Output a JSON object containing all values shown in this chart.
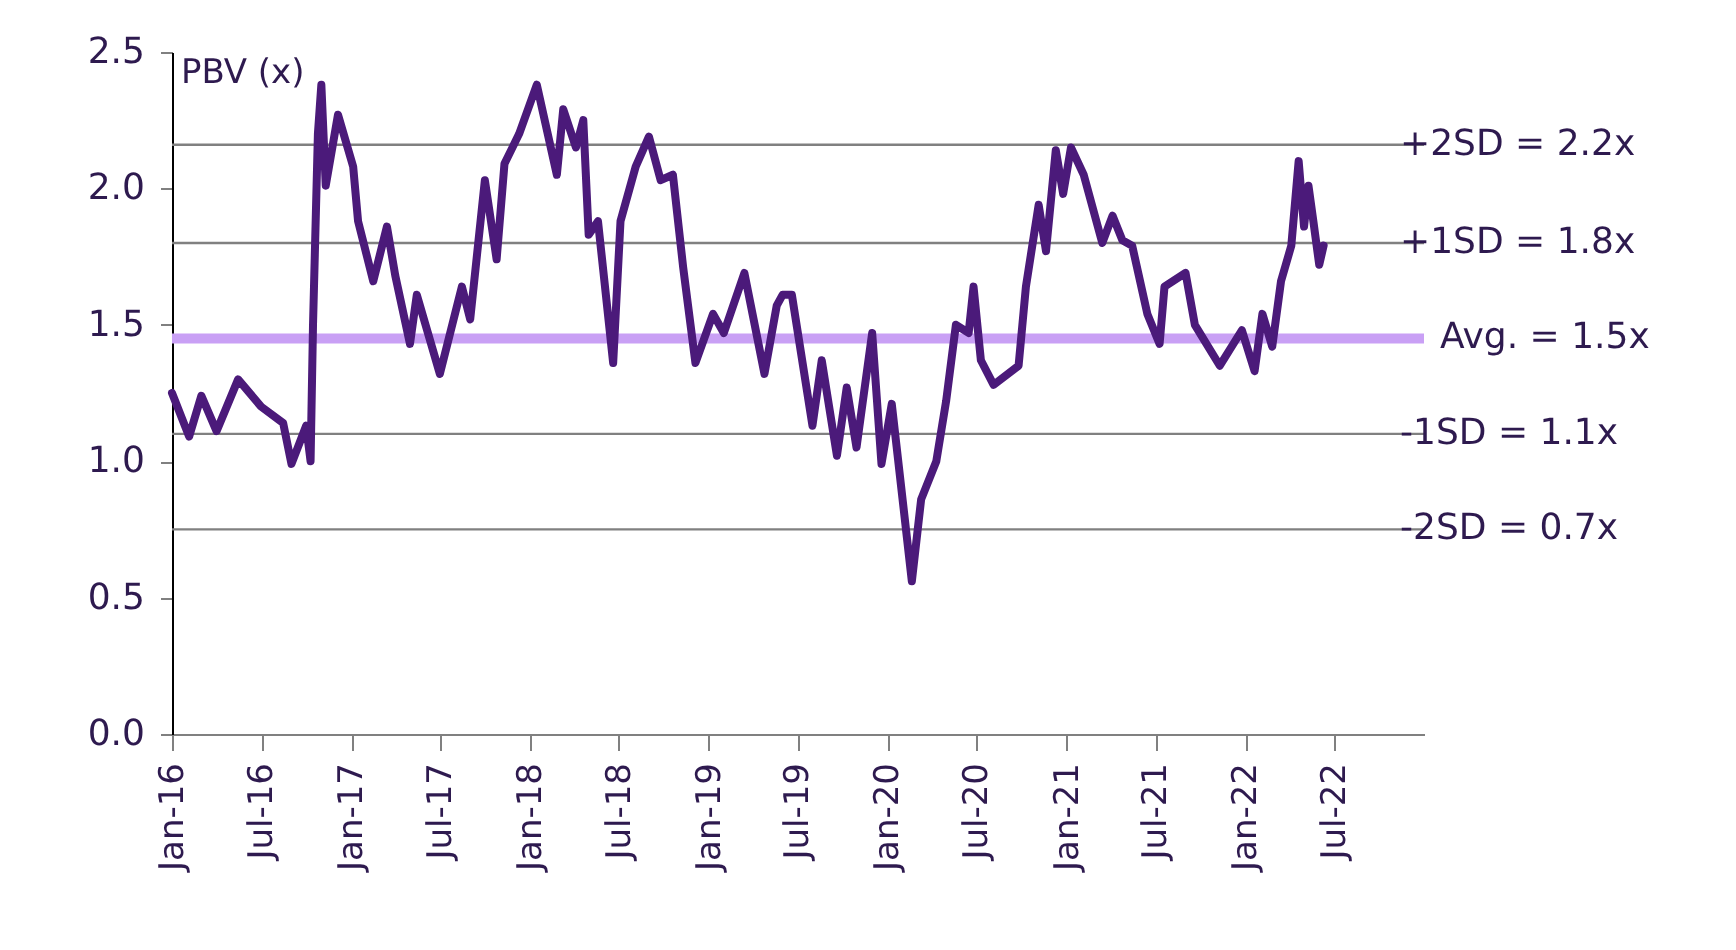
{
  "chart_data": {
    "type": "line",
    "ylabel": "PBV (x)",
    "x": [
      "2016-01-01",
      "2016-02-05",
      "2016-03-01",
      "2016-04-01",
      "2016-05-15",
      "2016-07-01",
      "2016-08-15",
      "2016-09-01",
      "2016-10-01",
      "2016-10-10",
      "2016-10-15",
      "2016-10-25",
      "2016-11-01",
      "2016-11-10",
      "2016-12-05",
      "2017-01-05",
      "2017-01-15",
      "2017-02-15",
      "2017-03-15",
      "2017-04-01",
      "2017-05-01",
      "2017-05-15",
      "2017-07-01",
      "2017-08-15",
      "2017-09-01",
      "2017-10-01",
      "2017-10-25",
      "2017-11-10",
      "2017-12-10",
      "2018-01-15",
      "2018-02-25",
      "2018-03-10",
      "2018-04-05",
      "2018-04-20",
      "2018-05-01",
      "2018-05-20",
      "2018-06-20",
      "2018-07-05",
      "2018-08-05",
      "2018-09-01",
      "2018-09-25",
      "2018-10-20",
      "2018-11-10",
      "2018-12-05",
      "2019-01-10",
      "2019-02-01",
      "2019-03-15",
      "2019-04-25",
      "2019-05-20",
      "2019-06-01",
      "2019-06-20",
      "2019-08-01",
      "2019-08-20",
      "2019-09-20",
      "2019-10-10",
      "2019-10-30",
      "2019-12-01",
      "2019-12-20",
      "2020-01-10",
      "2020-02-20",
      "2020-03-10",
      "2020-04-10",
      "2020-04-30",
      "2020-05-20",
      "2020-06-15",
      "2020-06-25",
      "2020-07-10",
      "2020-08-05",
      "2020-09-25",
      "2020-10-10",
      "2020-11-05",
      "2020-11-20",
      "2020-12-10",
      "2020-12-25",
      "2021-01-10",
      "2021-02-05",
      "2021-03-15",
      "2021-04-05",
      "2021-04-25",
      "2021-05-15",
      "2021-06-15",
      "2021-07-10",
      "2021-07-20",
      "2021-09-01",
      "2021-09-20",
      "2021-11-10",
      "2021-12-25",
      "2022-01-20",
      "2022-02-05",
      "2022-02-25",
      "2022-03-15",
      "2022-04-05",
      "2022-04-20",
      "2022-05-01",
      "2022-05-10",
      "2022-05-20",
      "2022-06-01",
      "2022-06-10"
    ],
    "series": [
      {
        "color": "#4b1a7a",
        "values": [
          1.25,
          1.09,
          1.24,
          1.11,
          1.3,
          1.2,
          1.14,
          0.99,
          1.13,
          1.0,
          1.5,
          2.2,
          2.38,
          2.01,
          2.27,
          2.08,
          1.88,
          1.66,
          1.86,
          1.68,
          1.43,
          1.61,
          1.32,
          1.64,
          1.52,
          2.03,
          1.74,
          2.09,
          2.2,
          2.38,
          2.05,
          2.29,
          2.15,
          2.25,
          1.83,
          1.88,
          1.36,
          1.88,
          2.08,
          2.19,
          2.03,
          2.05,
          1.71,
          1.36,
          1.54,
          1.47,
          1.69,
          1.32,
          1.57,
          1.61,
          1.61,
          1.13,
          1.37,
          1.02,
          1.27,
          1.05,
          1.47,
          0.99,
          1.21,
          0.56,
          0.86,
          1.0,
          1.22,
          1.5,
          1.47,
          1.64,
          1.37,
          1.28,
          1.35,
          1.64,
          1.94,
          1.77,
          2.14,
          1.98,
          2.15,
          2.05,
          1.8,
          1.9,
          1.81,
          1.79,
          1.54,
          1.43,
          1.64,
          1.69,
          1.5,
          1.35,
          1.48,
          1.33,
          1.54,
          1.42,
          1.66,
          1.79,
          2.1,
          1.86,
          2.01,
          1.88,
          1.72,
          1.79
        ]
      }
    ],
    "xlim": [
      "2016-01-01",
      "2023-01-01"
    ],
    "xticks": [
      {
        "value": "2016-01-01",
        "label": "Jan-16"
      },
      {
        "value": "2016-07-01",
        "label": "Jul-16"
      },
      {
        "value": "2017-01-01",
        "label": "Jan-17"
      },
      {
        "value": "2017-07-01",
        "label": "Jul-17"
      },
      {
        "value": "2018-01-01",
        "label": "Jan-18"
      },
      {
        "value": "2018-07-01",
        "label": "Jul-18"
      },
      {
        "value": "2019-01-01",
        "label": "Jan-19"
      },
      {
        "value": "2019-07-01",
        "label": "Jul-19"
      },
      {
        "value": "2020-01-01",
        "label": "Jan-20"
      },
      {
        "value": "2020-07-01",
        "label": "Jul-20"
      },
      {
        "value": "2021-01-01",
        "label": "Jan-21"
      },
      {
        "value": "2021-07-01",
        "label": "Jul-21"
      },
      {
        "value": "2022-01-01",
        "label": "Jan-22"
      },
      {
        "value": "2022-07-01",
        "label": "Jul-22"
      }
    ],
    "ylim": [
      0,
      2.5
    ],
    "yticks": [
      {
        "value": 0,
        "label": "0.0"
      },
      {
        "value": 0.5,
        "label": "0.5"
      },
      {
        "value": 1,
        "label": "1.0"
      },
      {
        "value": 1.5,
        "label": "1.5"
      },
      {
        "value": 2,
        "label": "2.0"
      },
      {
        "value": 2.5,
        "label": "2.5"
      }
    ],
    "ref_lines": [
      {
        "axis": "y",
        "value": 2.16,
        "label": "+2SD = 2.2x",
        "color": "#808080"
      },
      {
        "axis": "y",
        "value": 1.8,
        "label": "+1SD = 1.8x",
        "color": "#808080"
      },
      {
        "axis": "y",
        "value": 1.45,
        "label": "Avg. = 1.5x",
        "color": "#c9a0f5"
      },
      {
        "axis": "y",
        "value": 1.1,
        "label": "-1SD = 1.1x",
        "color": "#808080"
      },
      {
        "axis": "y",
        "value": 0.75,
        "label": "-2SD = 0.7x",
        "color": "#808080"
      }
    ],
    "grid": false,
    "marker": "none",
    "line_style": "solid"
  }
}
